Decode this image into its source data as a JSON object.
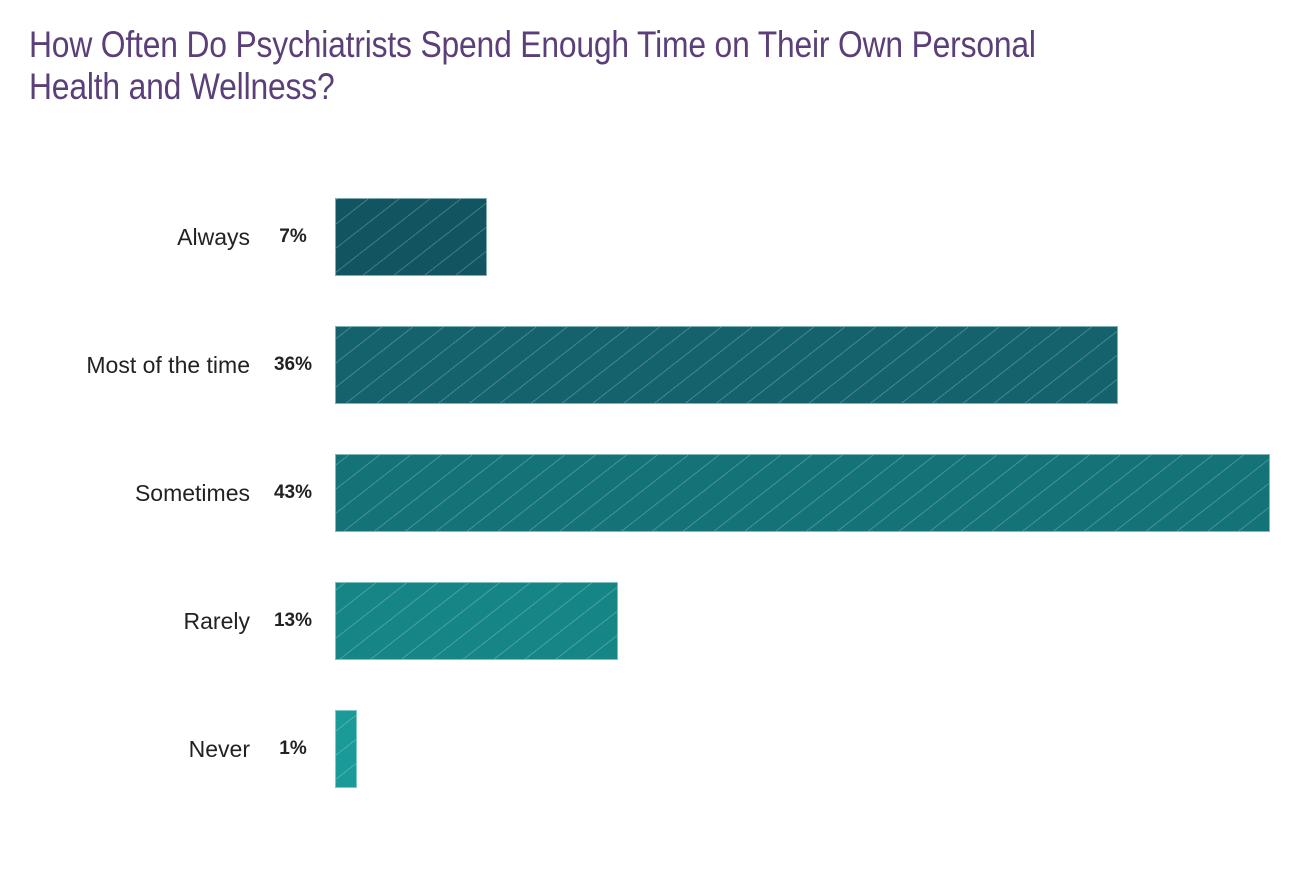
{
  "title": "How Often Do Psychiatrists Spend Enough Time on Their Own Personal Health and Wellness?",
  "bars": [
    {
      "label": "Always",
      "value_label": "7%",
      "value": 7,
      "color": "#135461"
    },
    {
      "label": "Most of the time",
      "value_label": "36%",
      "value": 36,
      "color": "#14636c"
    },
    {
      "label": "Sometimes",
      "value_label": "43%",
      "value": 43,
      "color": "#147377"
    },
    {
      "label": "Rarely",
      "value_label": "13%",
      "value": 13,
      "color": "#168585"
    },
    {
      "label": "Never",
      "value_label": "1%",
      "value": 1,
      "color": "#1a9a98"
    }
  ],
  "chart_data": {
    "type": "bar",
    "orientation": "horizontal",
    "title": "How Often Do Psychiatrists Spend Enough Time on Their Own Personal Health and Wellness?",
    "categories": [
      "Always",
      "Most of the time",
      "Sometimes",
      "Rarely",
      "Never"
    ],
    "values": [
      7,
      36,
      43,
      13,
      1
    ],
    "value_labels": [
      "7%",
      "36%",
      "43%",
      "13%",
      "1%"
    ],
    "xlabel": "",
    "ylabel": "",
    "unit": "%",
    "grid": false,
    "legend": null
  }
}
